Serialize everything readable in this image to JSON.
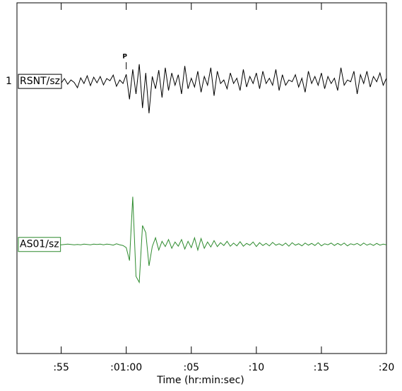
{
  "chart_data": {
    "type": "line",
    "xlabel": "Time (hr:min:sec)",
    "channel_label": "1",
    "pick": {
      "text": "P",
      "x": 60
    },
    "xlim": [
      51.6,
      80
    ],
    "ylim": [
      0,
      100
    ],
    "xticks": [
      {
        "value": 55,
        "label": ":55"
      },
      {
        "value": 60,
        "label": ":01:00"
      },
      {
        "value": 65,
        "label": ":05"
      },
      {
        "value": 70,
        "label": ":10"
      },
      {
        "value": 75,
        "label": ":15"
      },
      {
        "value": 80,
        "label": ":20"
      }
    ],
    "x": [
      52,
      52.25,
      52.5,
      52.75,
      53,
      53.25,
      53.5,
      53.75,
      54,
      54.25,
      54.5,
      54.75,
      55,
      55.25,
      55.5,
      55.75,
      56,
      56.25,
      56.5,
      56.75,
      57,
      57.25,
      57.5,
      57.75,
      58,
      58.25,
      58.5,
      58.75,
      59,
      59.25,
      59.5,
      59.75,
      60,
      60.25,
      60.5,
      60.75,
      61,
      61.25,
      61.5,
      61.75,
      62,
      62.25,
      62.5,
      62.75,
      63,
      63.25,
      63.5,
      63.75,
      64,
      64.25,
      64.5,
      64.75,
      65,
      65.25,
      65.5,
      65.75,
      66,
      66.25,
      66.5,
      66.75,
      67,
      67.25,
      67.5,
      67.75,
      68,
      68.25,
      68.5,
      68.75,
      69,
      69.25,
      69.5,
      69.75,
      70,
      70.25,
      70.5,
      70.75,
      71,
      71.25,
      71.5,
      71.75,
      72,
      72.25,
      72.5,
      72.75,
      73,
      73.25,
      73.5,
      73.75,
      74,
      74.25,
      74.5,
      74.75,
      75,
      75.25,
      75.5,
      75.75,
      76,
      76.25,
      76.5,
      76.75,
      77,
      77.25,
      77.5,
      77.75,
      78,
      78.25,
      78.5,
      78.75,
      79,
      79.25,
      79.5,
      79.75,
      80
    ],
    "series": [
      {
        "name": "RSNT/sz",
        "color": "#000000",
        "values": [
          77.6,
          78.0,
          77.2,
          77.8,
          77.4,
          78.2,
          77.0,
          77.9,
          77.5,
          77.8,
          76.9,
          78.3,
          77.1,
          78.4,
          76.8,
          78.0,
          77.3,
          75.8,
          78.6,
          77.0,
          79.2,
          76.4,
          78.8,
          77.2,
          79.0,
          76.6,
          78.4,
          77.8,
          79.4,
          76.2,
          78.0,
          77.0,
          79.6,
          72.5,
          81.0,
          74.0,
          82.5,
          70.0,
          80.0,
          68.5,
          79.0,
          75.5,
          80.8,
          73.0,
          81.5,
          75.0,
          80.0,
          76.5,
          79.5,
          74.0,
          82.0,
          75.5,
          78.5,
          76.0,
          80.5,
          74.5,
          79.0,
          76.5,
          81.5,
          73.5,
          80.5,
          77.0,
          78.0,
          75.5,
          80.0,
          77.0,
          78.5,
          75.0,
          81.0,
          76.0,
          79.0,
          77.0,
          80.0,
          75.5,
          80.5,
          77.0,
          78.5,
          76.5,
          81.0,
          75.0,
          79.5,
          76.5,
          78.0,
          77.5,
          79.5,
          76.0,
          78.5,
          74.5,
          80.5,
          77.0,
          79.0,
          76.5,
          80.0,
          75.5,
          79.0,
          77.0,
          78.5,
          75.0,
          81.5,
          76.5,
          78.0,
          77.5,
          80.5,
          74.0,
          79.5,
          77.0,
          80.5,
          76.0,
          79.0,
          77.5,
          80.0,
          76.5,
          78.5
        ]
      },
      {
        "name": "AS01/sz",
        "color": "#2e8b2e",
        "values": [
          31.1,
          31.1,
          31.2,
          31.1,
          31.0,
          31.1,
          31.2,
          31.1,
          31.0,
          31.1,
          31.2,
          31.1,
          31.0,
          31.1,
          31.2,
          31.1,
          31.0,
          31.1,
          31.0,
          31.2,
          31.1,
          31.0,
          31.2,
          31.1,
          31.2,
          31.0,
          31.2,
          31.1,
          30.9,
          31.3,
          31.0,
          30.8,
          30.2,
          26.5,
          44.7,
          22.0,
          20.3,
          36.5,
          34.5,
          25.0,
          30.5,
          33.0,
          29.5,
          32.0,
          30.5,
          32.5,
          30.0,
          31.8,
          30.6,
          32.5,
          29.8,
          32.0,
          30.2,
          33.0,
          29.5,
          32.8,
          30.0,
          31.8,
          30.4,
          32.2,
          30.5,
          31.6,
          30.8,
          32.0,
          30.6,
          31.5,
          30.7,
          31.9,
          30.6,
          31.4,
          30.9,
          31.8,
          30.5,
          31.6,
          30.8,
          31.4,
          30.7,
          31.7,
          30.9,
          31.3,
          30.8,
          31.5,
          30.6,
          31.6,
          30.9,
          31.3,
          30.7,
          31.5,
          30.9,
          31.4,
          30.8,
          31.6,
          30.7,
          31.3,
          31.0,
          31.5,
          30.8,
          31.4,
          30.9,
          31.5,
          30.7,
          31.3,
          31.0,
          31.4,
          30.8,
          31.5,
          30.9,
          31.3,
          30.8,
          31.4,
          30.9,
          31.2,
          31.0
        ]
      }
    ]
  }
}
